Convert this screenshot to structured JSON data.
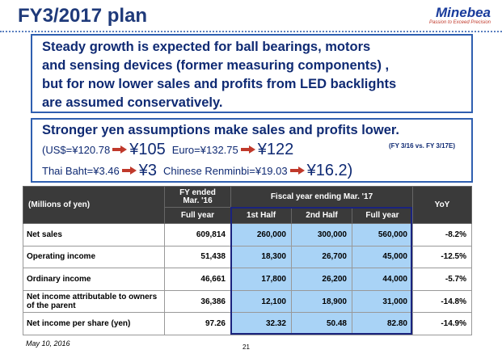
{
  "header": {
    "title": "FY3/2017 plan",
    "logo": "Minebea",
    "tagline": "Passion to Exceed Precision"
  },
  "summary": {
    "lines": [
      "Steady growth is expected for ball bearings, motors",
      "and sensing devices (former measuring components) ,",
      "but for now lower sales and profits from LED backlights",
      "are assumed conservatively."
    ]
  },
  "fx": {
    "heading": "Stronger yen assumptions make sales and profits lower.",
    "note": "(FY 3/16 vs. FY 3/17E)",
    "rates": [
      {
        "from": "(US$=¥120.78",
        "to": "¥105"
      },
      {
        "from": "Euro=¥132.75",
        "to": "¥122"
      },
      {
        "from": "Thai Baht=¥3.46",
        "to": "¥3"
      },
      {
        "from": "Chinese Renminbi=¥19.03",
        "to": "¥16.2)"
      }
    ]
  },
  "table": {
    "unit": "(Millions of yen)",
    "prior_heading": "FY ended Mar. '16",
    "prior_sub": "Full year",
    "plan_heading": "Fiscal year ending Mar. '17",
    "columns": [
      "1st Half",
      "2nd Half",
      "Full year"
    ],
    "yoy": "YoY",
    "rows": [
      [
        "Net sales",
        "609,814",
        "260,000",
        "300,000",
        "560,000",
        "-8.2%"
      ],
      [
        "Operating income",
        "51,438",
        "18,300",
        "26,700",
        "45,000",
        "-12.5%"
      ],
      [
        "Ordinary income",
        "46,661",
        "17,800",
        "26,200",
        "44,000",
        "-5.7%"
      ],
      [
        "Net income attributable to owners of the parent",
        "36,386",
        "12,100",
        "18,900",
        "31,000",
        "-14.8%"
      ],
      [
        "Net income per share (yen)",
        "97.26",
        "32.32",
        "50.48",
        "82.80",
        "-14.9%"
      ]
    ]
  },
  "footer": {
    "date": "May 10, 2016",
    "page": "21"
  }
}
